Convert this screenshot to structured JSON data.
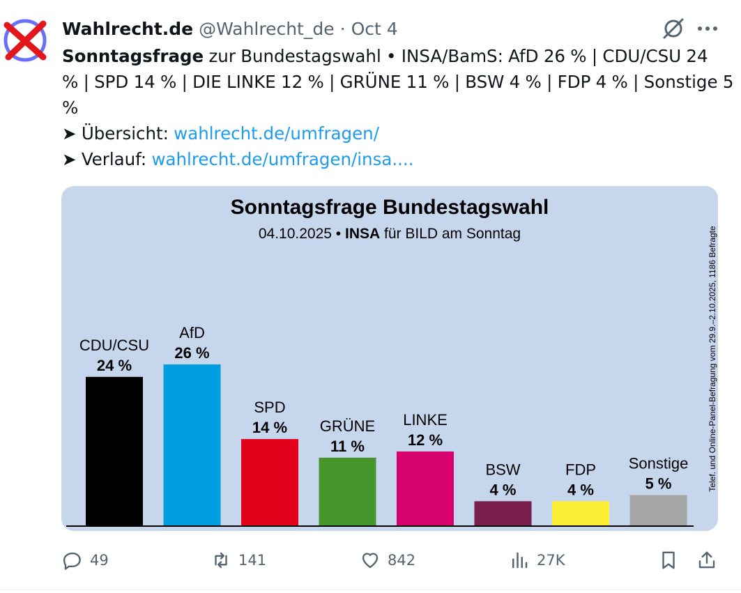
{
  "tweet": {
    "author_name": "Wahlrecht.de",
    "author_handle": "@Wahlrecht_de",
    "separator": "·",
    "date": "Oct 4",
    "text_bold": "Sonntagsfrage",
    "text_line1_rest": " zur Bundestagswahl • INSA/BamS: AfD 26 % | CDU/CSU 24",
    "text_line2": "% | SPD 14 % | DIE LINKE 12 % | GRÜNE 11 % | BSW 4 % | FDP 4 % | Sonstige 5",
    "text_line3": "%",
    "overview_label": "➤ Übersicht: ",
    "overview_link": "wahlrecht.de/umfragen/",
    "history_label": "➤ Verlauf: ",
    "history_link": "wahlrecht.de/umfragen/insa...."
  },
  "icons": {
    "avatar": "red-x-ballot-icon",
    "grok": "grok-icon",
    "more": "more-horizontal-icon",
    "reply": "reply-icon",
    "retweet": "retweet-icon",
    "like": "heart-icon",
    "views": "analytics-icon",
    "bookmark": "bookmark-icon",
    "share": "share-icon"
  },
  "actions": {
    "replies": "49",
    "reposts": "141",
    "likes": "842",
    "views": "27K"
  },
  "chart_data": {
    "type": "bar",
    "title": "Sonntagsfrage Bundestagswahl",
    "subtitle_date": "04.10.2025 • ",
    "subtitle_institute": "INSA",
    "subtitle_client": " für BILD am Sonntag",
    "side_note": "Telef. und Online-Panel-Befragung vom 29.9.–2.10.2025, 1186 Befragte",
    "categories": [
      "CDU/CSU",
      "AfD",
      "SPD",
      "GRÜNE",
      "LINKE",
      "BSW",
      "FDP",
      "Sonstige"
    ],
    "values": [
      24,
      26,
      14,
      11,
      12,
      4,
      4,
      5
    ],
    "value_labels": [
      "24 %",
      "26 %",
      "14 %",
      "11 %",
      "12 %",
      "4 %",
      "4 %",
      "5 %"
    ],
    "colors": [
      "#000000",
      "#009ee0",
      "#e3001b",
      "#46962b",
      "#d6006e",
      "#7a1f4b",
      "#fcee35",
      "#a6a6a6"
    ],
    "background": "#c6d6ec",
    "ylim": [
      0,
      26
    ],
    "grid": false,
    "legend": "none"
  }
}
